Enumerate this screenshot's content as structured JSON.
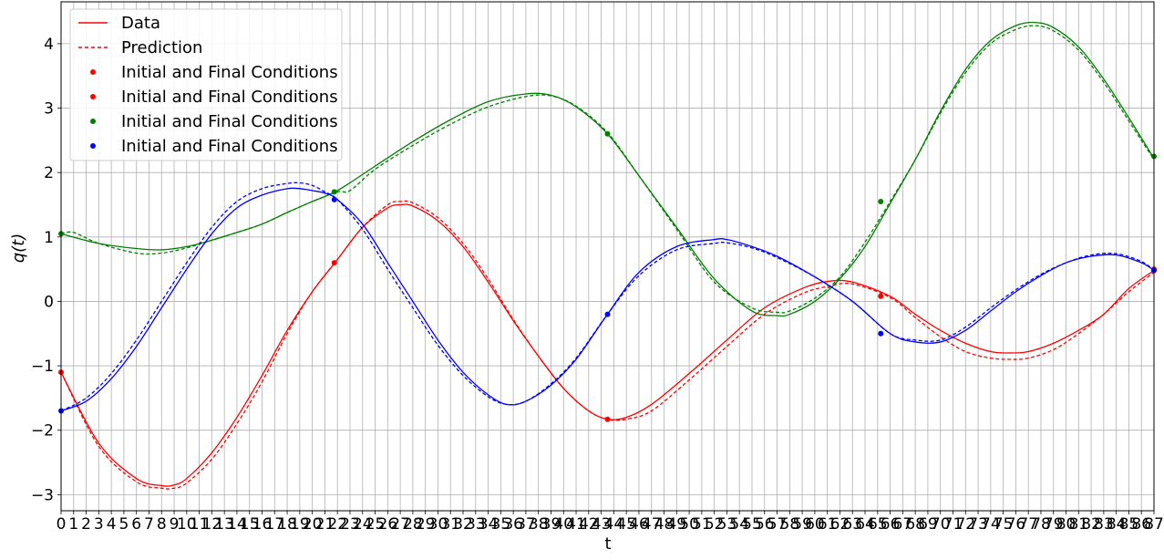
{
  "chart_data": {
    "type": "line",
    "xlabel": "t",
    "ylabel": "q(t)",
    "xlim": [
      0,
      87
    ],
    "ylim": [
      -3.25,
      4.65
    ],
    "grid": true,
    "x_ticks": [
      "0",
      "1",
      "2",
      "3",
      "4",
      "5",
      "6",
      "7",
      "8",
      "9",
      "10",
      "11",
      "12",
      "13",
      "14",
      "15",
      "16",
      "17",
      "18",
      "19",
      "20",
      "21",
      "22",
      "23",
      "24",
      "25",
      "26",
      "27",
      "28",
      "29",
      "30",
      "31",
      "32",
      "33",
      "34",
      "35",
      "36",
      "37",
      "38",
      "39",
      "40",
      "41",
      "42",
      "43",
      "44",
      "45",
      "46",
      "47",
      "48",
      "49",
      "50",
      "51",
      "52",
      "53",
      "54",
      "55",
      "56",
      "57",
      "58",
      "59",
      "60",
      "61",
      "62",
      "63",
      "64",
      "65",
      "66",
      "67",
      "68",
      "69",
      "70",
      "71",
      "72",
      "73",
      "74",
      "75",
      "76",
      "77",
      "78",
      "79",
      "80",
      "81",
      "82",
      "83",
      "84",
      "85",
      "86",
      "87"
    ],
    "y_ticks": [
      {
        "value": -3,
        "label": "−3"
      },
      {
        "value": -2,
        "label": "−2"
      },
      {
        "value": -1,
        "label": "−1"
      },
      {
        "value": 0,
        "label": "0"
      },
      {
        "value": 1,
        "label": "1"
      },
      {
        "value": 2,
        "label": "2"
      },
      {
        "value": 3,
        "label": "3"
      },
      {
        "value": 4,
        "label": "4"
      }
    ],
    "legend": {
      "placement": "top-left",
      "entries": [
        {
          "label": "Data",
          "style": "solid-line",
          "color": "#ff0000"
        },
        {
          "label": "Prediction",
          "style": "dashed-line",
          "color": "#ff0000"
        },
        {
          "label": "Initial and Final Conditions",
          "style": "dot",
          "color": "#ff0000"
        },
        {
          "label": "Initial and Final Conditions",
          "style": "dot",
          "color": "#ff0000"
        },
        {
          "label": "Initial and Final Conditions",
          "style": "dot",
          "color": "#008000"
        },
        {
          "label": "Initial and Final Conditions",
          "style": "dot",
          "color": "#0000ff"
        }
      ]
    },
    "series": [
      {
        "color": "#ff0000",
        "kind": "data",
        "x": [
          0,
          3,
          6,
          8,
          9,
          10,
          12,
          14,
          16,
          18,
          20,
          22,
          24,
          26,
          27,
          28,
          30,
          32,
          34,
          36,
          38,
          40,
          42,
          43.5,
          45,
          47,
          50,
          53,
          56,
          59,
          61,
          63,
          66,
          68,
          70,
          72,
          74,
          75.5,
          77,
          79,
          81,
          83,
          85,
          87
        ],
        "y": [
          -1.1,
          -2.2,
          -2.75,
          -2.86,
          -2.85,
          -2.75,
          -2.35,
          -1.8,
          -1.15,
          -0.45,
          0.15,
          0.65,
          1.15,
          1.45,
          1.5,
          1.48,
          1.25,
          0.85,
          0.3,
          -0.3,
          -0.85,
          -1.35,
          -1.7,
          -1.83,
          -1.8,
          -1.6,
          -1.12,
          -0.6,
          -0.1,
          0.2,
          0.31,
          0.3,
          0.08,
          -0.2,
          -0.45,
          -0.65,
          -0.78,
          -0.8,
          -0.78,
          -0.65,
          -0.45,
          -0.2,
          0.2,
          0.48
        ]
      },
      {
        "color": "#ff0000",
        "kind": "prediction",
        "x": [
          0,
          3,
          6,
          8,
          9,
          10,
          12,
          14,
          16,
          18,
          20,
          22,
          24,
          26,
          27,
          28,
          30,
          32,
          34,
          36,
          38,
          40,
          42,
          43.5,
          45,
          47,
          50,
          53,
          56,
          59,
          61,
          63,
          66,
          68,
          70,
          72,
          74,
          75.5,
          77,
          79,
          81,
          83,
          85,
          87
        ],
        "y": [
          -1.1,
          -2.25,
          -2.8,
          -2.9,
          -2.9,
          -2.82,
          -2.45,
          -1.9,
          -1.25,
          -0.5,
          0.15,
          0.65,
          1.15,
          1.5,
          1.55,
          1.53,
          1.3,
          0.9,
          0.35,
          -0.28,
          -0.85,
          -1.35,
          -1.7,
          -1.83,
          -1.83,
          -1.7,
          -1.22,
          -0.7,
          -0.2,
          0.12,
          0.23,
          0.27,
          0.06,
          -0.25,
          -0.55,
          -0.78,
          -0.88,
          -0.9,
          -0.88,
          -0.75,
          -0.5,
          -0.2,
          0.15,
          0.45
        ]
      },
      {
        "color": "#008000",
        "kind": "data",
        "x": [
          0,
          3,
          6,
          8,
          10,
          12,
          14,
          16,
          18,
          20,
          22,
          25,
          28,
          31,
          34,
          37,
          39,
          41,
          43.5,
          46,
          49,
          52,
          55,
          57,
          58,
          60,
          62,
          64,
          66,
          68,
          70,
          72,
          74,
          76,
          77.5,
          79,
          81,
          83,
          85,
          87
        ],
        "y": [
          1.05,
          0.9,
          0.82,
          0.8,
          0.85,
          0.95,
          1.07,
          1.2,
          1.38,
          1.55,
          1.72,
          2.1,
          2.48,
          2.82,
          3.1,
          3.22,
          3.2,
          3.02,
          2.6,
          1.95,
          1.15,
          0.35,
          -0.15,
          -0.22,
          -0.2,
          0.0,
          0.35,
          0.85,
          1.52,
          2.2,
          2.95,
          3.6,
          4.05,
          4.28,
          4.33,
          4.25,
          3.95,
          3.45,
          2.85,
          2.22
        ]
      },
      {
        "color": "#008000",
        "kind": "prediction",
        "x": [
          0,
          1,
          3,
          6,
          8,
          10,
          12,
          14,
          16,
          18,
          20,
          22,
          23,
          25,
          28,
          31,
          34,
          37,
          39,
          41,
          43.5,
          46,
          49,
          52,
          55,
          57,
          58,
          60,
          62,
          64,
          66,
          68,
          70,
          72,
          74,
          76,
          77.5,
          79,
          81,
          83,
          85,
          87
        ],
        "y": [
          1.05,
          1.07,
          0.9,
          0.75,
          0.75,
          0.83,
          0.95,
          1.07,
          1.2,
          1.38,
          1.55,
          1.7,
          1.72,
          2.05,
          2.42,
          2.75,
          3.02,
          3.18,
          3.19,
          3.03,
          2.62,
          1.95,
          1.12,
          0.3,
          -0.1,
          -0.17,
          -0.15,
          0.05,
          0.38,
          0.92,
          1.55,
          2.2,
          2.92,
          3.55,
          4.0,
          4.22,
          4.28,
          4.2,
          3.9,
          3.4,
          2.8,
          2.2
        ]
      },
      {
        "color": "#0000ff",
        "kind": "data",
        "x": [
          0,
          2,
          4,
          6,
          8,
          10,
          12,
          14,
          16,
          18,
          19,
          20,
          21,
          22,
          24,
          26,
          28,
          30,
          32,
          34,
          35.5,
          37,
          39,
          41,
          43.5,
          46,
          49,
          52,
          53,
          55,
          57,
          60,
          63,
          66,
          68,
          70,
          72,
          74,
          76,
          78,
          80,
          82,
          84,
          86,
          87
        ],
        "y": [
          -1.7,
          -1.55,
          -1.2,
          -0.7,
          -0.1,
          0.5,
          1.05,
          1.45,
          1.65,
          1.75,
          1.75,
          1.72,
          1.68,
          1.58,
          1.2,
          0.6,
          0.0,
          -0.6,
          -1.1,
          -1.45,
          -1.6,
          -1.55,
          -1.3,
          -0.9,
          -0.2,
          0.45,
          0.85,
          0.96,
          0.96,
          0.85,
          0.7,
          0.38,
          0.0,
          -0.5,
          -0.63,
          -0.63,
          -0.45,
          -0.15,
          0.15,
          0.4,
          0.6,
          0.7,
          0.72,
          0.6,
          0.48
        ]
      },
      {
        "color": "#0000ff",
        "kind": "prediction",
        "x": [
          0,
          2,
          4,
          6,
          8,
          10,
          12,
          14,
          16,
          18,
          19,
          20,
          21,
          22,
          24,
          26,
          28,
          30,
          32,
          34,
          35.5,
          37,
          39,
          41,
          43.5,
          46,
          49,
          52,
          53,
          55,
          57,
          60,
          63,
          66,
          68,
          70,
          72,
          74,
          76,
          78,
          80,
          82,
          84,
          86,
          87
        ],
        "y": [
          -1.7,
          -1.5,
          -1.12,
          -0.6,
          0.0,
          0.6,
          1.15,
          1.55,
          1.75,
          1.83,
          1.84,
          1.8,
          1.7,
          1.58,
          1.12,
          0.5,
          -0.1,
          -0.68,
          -1.15,
          -1.48,
          -1.6,
          -1.55,
          -1.28,
          -0.88,
          -0.2,
          0.4,
          0.8,
          0.9,
          0.91,
          0.83,
          0.68,
          0.38,
          0.0,
          -0.5,
          -0.6,
          -0.6,
          -0.4,
          -0.1,
          0.18,
          0.42,
          0.6,
          0.72,
          0.74,
          0.62,
          0.48
        ]
      }
    ],
    "markers": [
      {
        "color": "#ff0000",
        "points": [
          [
            0,
            -1.1
          ],
          [
            21.75,
            0.6
          ],
          [
            43.5,
            -1.83
          ],
          [
            65.25,
            0.08
          ],
          [
            87,
            0.5
          ]
        ]
      },
      {
        "color": "#008000",
        "points": [
          [
            0,
            1.05
          ],
          [
            21.75,
            1.7
          ],
          [
            43.5,
            2.6
          ],
          [
            65.25,
            1.55
          ],
          [
            87,
            2.25
          ]
        ]
      },
      {
        "color": "#0000ff",
        "points": [
          [
            0,
            -1.7
          ],
          [
            21.75,
            1.58
          ],
          [
            43.5,
            -0.2
          ],
          [
            65.25,
            -0.5
          ],
          [
            87,
            0.48
          ]
        ]
      }
    ]
  }
}
